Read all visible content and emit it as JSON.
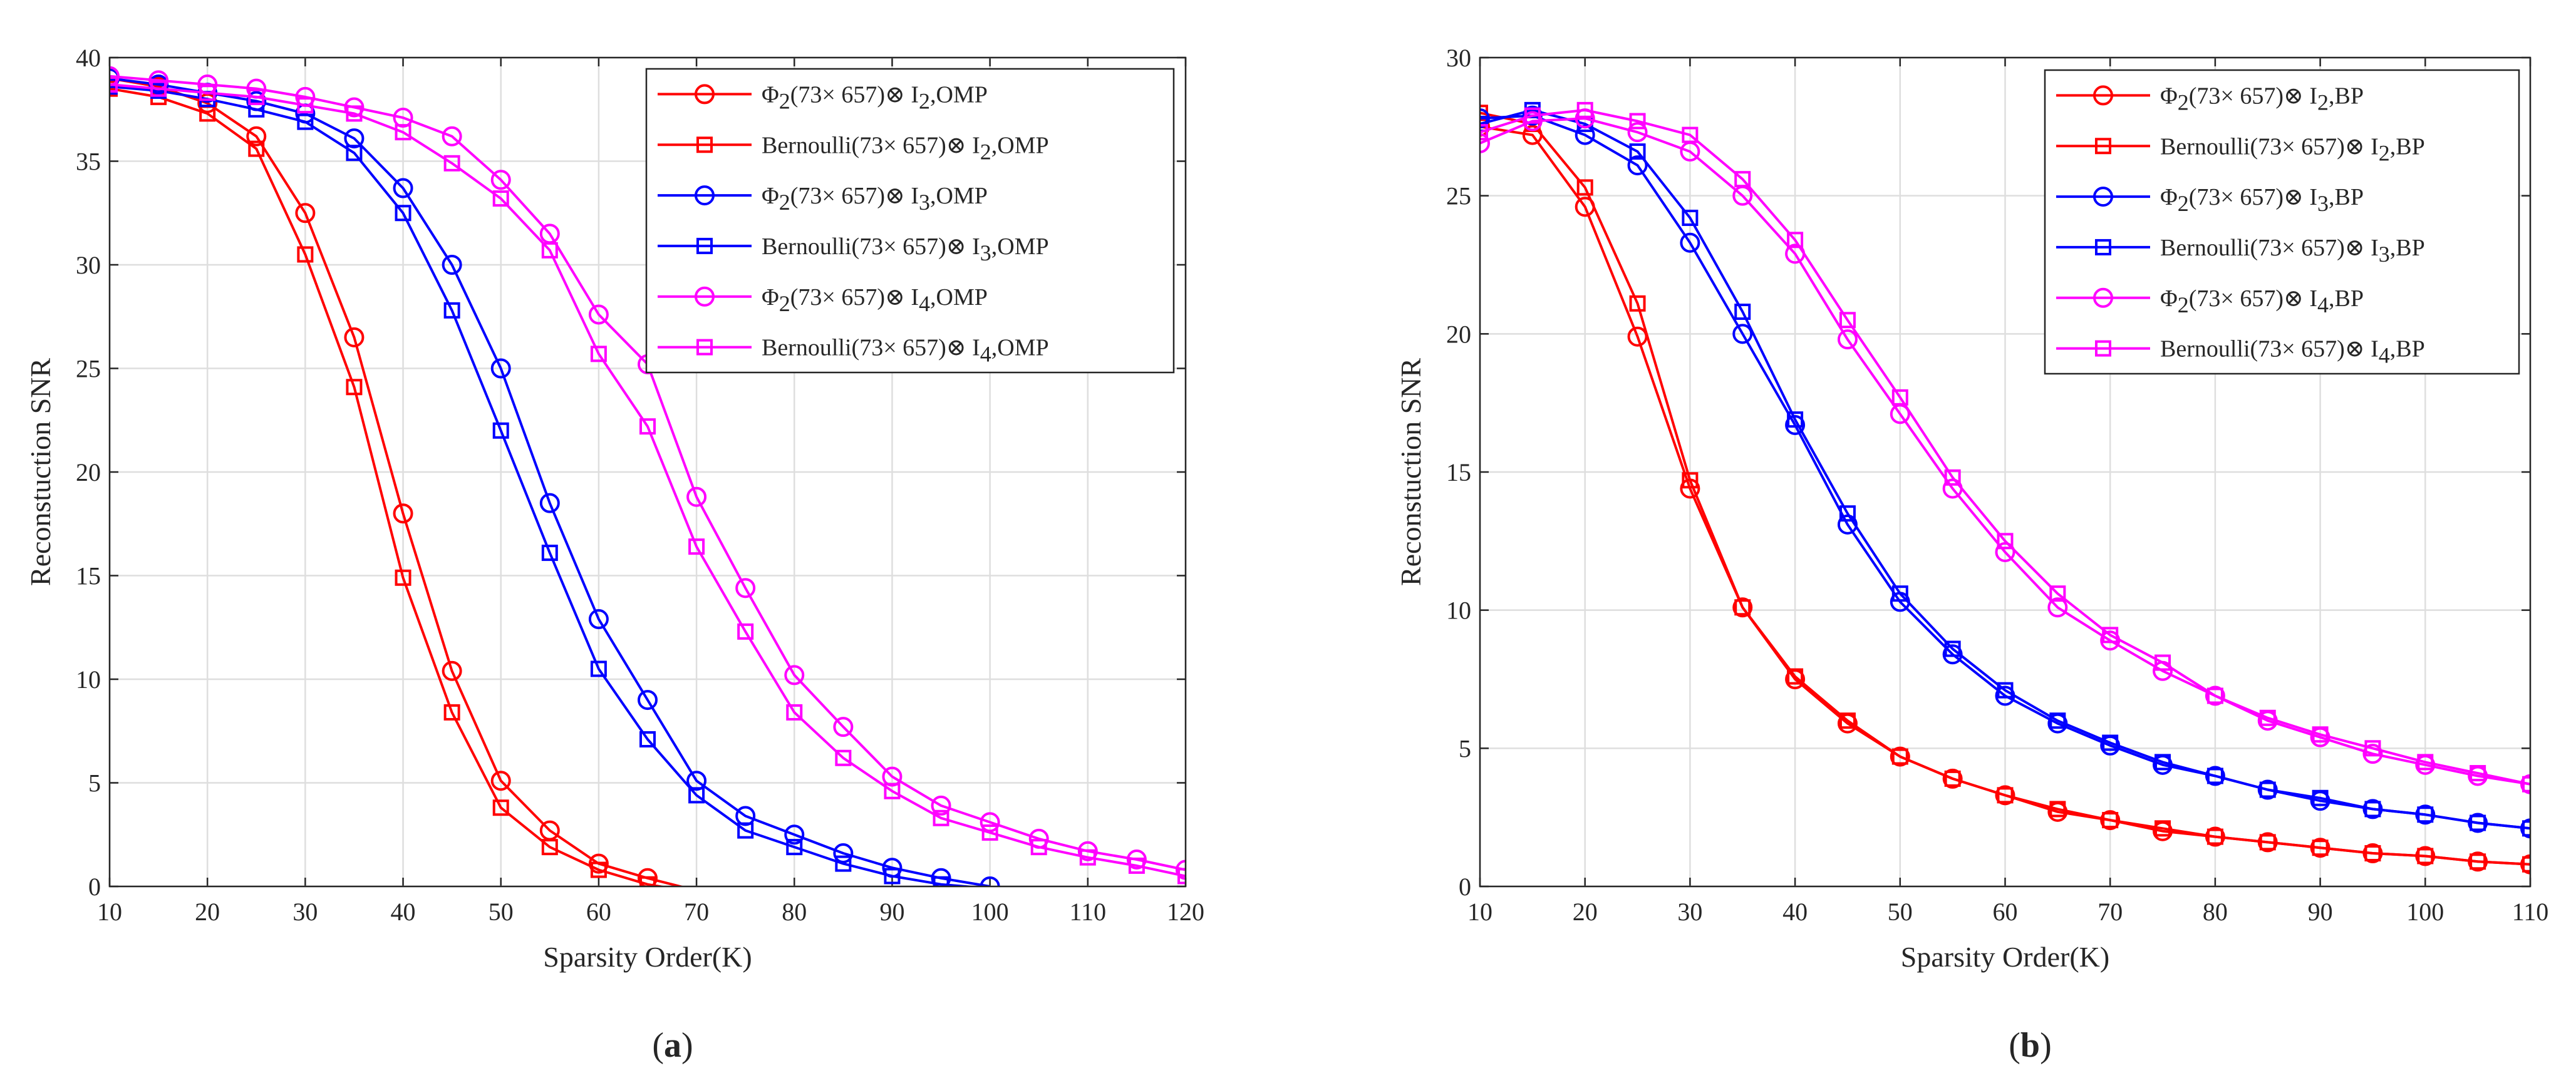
{
  "chart_data": [
    {
      "type": "line",
      "caption": "(a)",
      "xlabel": "Sparsity Order(K)",
      "ylabel": "Reconstuction SNR",
      "xlim": [
        10,
        120
      ],
      "ylim": [
        0,
        40
      ],
      "xticks": [
        10,
        20,
        30,
        40,
        50,
        60,
        70,
        80,
        90,
        100,
        110,
        120
      ],
      "yticks": [
        0,
        5,
        10,
        15,
        20,
        25,
        30,
        35,
        40
      ],
      "grid": true,
      "legend_position": "top-right",
      "series": [
        {
          "name": "Φ2(73× 657)⊗ I2,OMP",
          "legend": {
            "pre": "Φ",
            "pre_sub": "2",
            "mid": "(73× 657)⊗ I",
            "mid_sub": "2",
            "post": ",OMP"
          },
          "color": "#ff0000",
          "marker": "circle",
          "x": [
            10,
            15,
            20,
            25,
            30,
            35,
            40,
            45,
            50,
            55,
            60,
            65,
            70
          ],
          "y": [
            39.0,
            38.6,
            37.8,
            36.2,
            32.5,
            26.5,
            18.0,
            10.4,
            5.1,
            2.7,
            1.1,
            0.4,
            -0.2
          ]
        },
        {
          "name": "Bernoulli(73× 657)⊗ I2,OMP",
          "legend": {
            "pre": "Bernoulli",
            "pre_sub": "",
            "mid": "(73× 657)⊗ I",
            "mid_sub": "2",
            "post": ",OMP"
          },
          "color": "#ff0000",
          "marker": "square",
          "x": [
            10,
            15,
            20,
            25,
            30,
            35,
            40,
            45,
            50,
            55,
            60,
            65,
            70
          ],
          "y": [
            38.5,
            38.1,
            37.3,
            35.6,
            30.5,
            24.1,
            14.9,
            8.4,
            3.8,
            1.9,
            0.8,
            0.1,
            -0.3
          ]
        },
        {
          "name": "Φ2(73× 657)⊗ I3,OMP",
          "legend": {
            "pre": "Φ",
            "pre_sub": "2",
            "mid": "(73× 657)⊗ I",
            "mid_sub": "3",
            "post": ",OMP"
          },
          "color": "#0000ff",
          "marker": "circle",
          "x": [
            10,
            15,
            20,
            25,
            30,
            35,
            40,
            45,
            50,
            55,
            60,
            65,
            70,
            75,
            80,
            85,
            90,
            95,
            100
          ],
          "y": [
            39.0,
            38.7,
            38.3,
            37.9,
            37.3,
            36.1,
            33.7,
            30.0,
            25.0,
            18.5,
            12.9,
            9.0,
            5.1,
            3.4,
            2.5,
            1.6,
            0.9,
            0.4,
            0.0
          ]
        },
        {
          "name": "Bernoulli(73× 657)⊗ I3,OMP",
          "legend": {
            "pre": "Bernoulli",
            "pre_sub": "",
            "mid": "(73× 657)⊗ I",
            "mid_sub": "3",
            "post": ",OMP"
          },
          "color": "#0000ff",
          "marker": "square",
          "x": [
            10,
            15,
            20,
            25,
            30,
            35,
            40,
            45,
            50,
            55,
            60,
            65,
            70,
            75,
            80,
            85,
            90,
            95,
            100
          ],
          "y": [
            38.6,
            38.4,
            38.0,
            37.5,
            36.9,
            35.4,
            32.5,
            27.8,
            22.0,
            16.1,
            10.5,
            7.1,
            4.4,
            2.7,
            1.9,
            1.1,
            0.5,
            0.1,
            -0.1
          ]
        },
        {
          "name": "Φ2(73× 657)⊗ I4,OMP",
          "legend": {
            "pre": "Φ",
            "pre_sub": "2",
            "mid": "(73× 657)⊗ I",
            "mid_sub": "4",
            "post": ",OMP"
          },
          "color": "#ff00ff",
          "marker": "circle",
          "x": [
            10,
            15,
            20,
            25,
            30,
            35,
            40,
            45,
            50,
            55,
            60,
            65,
            70,
            75,
            80,
            85,
            90,
            95,
            100,
            105,
            110,
            115,
            120
          ],
          "y": [
            39.1,
            38.9,
            38.7,
            38.5,
            38.1,
            37.6,
            37.1,
            36.2,
            34.1,
            31.5,
            27.6,
            25.2,
            18.8,
            14.4,
            10.2,
            7.7,
            5.3,
            3.9,
            3.1,
            2.3,
            1.7,
            1.3,
            0.8
          ]
        },
        {
          "name": "Bernoulli(73× 657)⊗ I4,OMP",
          "legend": {
            "pre": "Bernoulli",
            "pre_sub": "",
            "mid": "(73× 657)⊗ I",
            "mid_sub": "4",
            "post": ",OMP"
          },
          "color": "#ff00ff",
          "marker": "square",
          "x": [
            10,
            15,
            20,
            25,
            30,
            35,
            40,
            45,
            50,
            55,
            60,
            65,
            70,
            75,
            80,
            85,
            90,
            95,
            100,
            105,
            110,
            115,
            120
          ],
          "y": [
            38.7,
            38.5,
            38.3,
            38.1,
            37.7,
            37.3,
            36.4,
            34.9,
            33.2,
            30.7,
            25.7,
            22.2,
            16.4,
            12.3,
            8.4,
            6.2,
            4.6,
            3.3,
            2.6,
            1.9,
            1.4,
            1.0,
            0.5
          ]
        }
      ]
    },
    {
      "type": "line",
      "caption": "(b)",
      "xlabel": "Sparsity Order(K)",
      "ylabel": "Reconstuction SNR",
      "xlim": [
        10,
        110
      ],
      "ylim": [
        0,
        30
      ],
      "xticks": [
        10,
        20,
        30,
        40,
        50,
        60,
        70,
        80,
        90,
        100,
        110
      ],
      "yticks": [
        0,
        5,
        10,
        15,
        20,
        25,
        30
      ],
      "grid": true,
      "legend_position": "top-right",
      "series": [
        {
          "name": "Φ2(73× 657)⊗ I2,BP",
          "legend": {
            "pre": "Φ",
            "pre_sub": "2",
            "mid": "(73× 657)⊗ I",
            "mid_sub": "2",
            "post": ",BP"
          },
          "color": "#ff0000",
          "marker": "circle",
          "x": [
            10,
            15,
            20,
            25,
            30,
            35,
            40,
            45,
            50,
            55,
            60,
            65,
            70,
            75,
            80,
            85,
            90,
            95,
            100,
            105,
            110
          ],
          "y": [
            27.5,
            27.2,
            24.6,
            19.9,
            14.4,
            10.1,
            7.5,
            5.9,
            4.7,
            3.9,
            3.3,
            2.7,
            2.4,
            2.0,
            1.8,
            1.6,
            1.4,
            1.2,
            1.1,
            0.9,
            0.8
          ]
        },
        {
          "name": "Bernoulli(73× 657)⊗ I2,BP",
          "legend": {
            "pre": "Bernoulli",
            "pre_sub": "",
            "mid": "(73× 657)⊗ I",
            "mid_sub": "2",
            "post": ",BP"
          },
          "color": "#ff0000",
          "marker": "square",
          "x": [
            10,
            15,
            20,
            25,
            30,
            35,
            40,
            45,
            50,
            55,
            60,
            65,
            70,
            75,
            80,
            85,
            90,
            95,
            100,
            105,
            110
          ],
          "y": [
            28.0,
            27.6,
            25.3,
            21.1,
            14.7,
            10.1,
            7.6,
            6.0,
            4.7,
            3.9,
            3.3,
            2.8,
            2.4,
            2.1,
            1.8,
            1.6,
            1.4,
            1.2,
            1.1,
            0.9,
            0.8
          ]
        },
        {
          "name": "Φ2(73× 657)⊗ I3,BP",
          "legend": {
            "pre": "Φ",
            "pre_sub": "2",
            "mid": "(73× 657)⊗ I",
            "mid_sub": "3",
            "post": ",BP"
          },
          "color": "#0000ff",
          "marker": "circle",
          "x": [
            10,
            15,
            20,
            25,
            30,
            35,
            40,
            45,
            50,
            55,
            60,
            65,
            70,
            75,
            80,
            85,
            90,
            95,
            100,
            105,
            110
          ],
          "y": [
            27.8,
            27.9,
            27.2,
            26.1,
            23.3,
            20.0,
            16.7,
            13.1,
            10.3,
            8.4,
            6.9,
            5.9,
            5.1,
            4.4,
            4.0,
            3.5,
            3.1,
            2.8,
            2.6,
            2.3,
            2.1
          ]
        },
        {
          "name": "Bernoulli(73× 657)⊗ I3,BP",
          "legend": {
            "pre": "Bernoulli",
            "pre_sub": "",
            "mid": "(73× 657)⊗ I",
            "mid_sub": "3",
            "post": ",BP"
          },
          "color": "#0000ff",
          "marker": "square",
          "x": [
            10,
            15,
            20,
            25,
            30,
            35,
            40,
            45,
            50,
            55,
            60,
            65,
            70,
            75,
            80,
            85,
            90,
            95,
            100,
            105,
            110
          ],
          "y": [
            27.6,
            28.1,
            27.6,
            26.6,
            24.2,
            20.8,
            16.9,
            13.5,
            10.6,
            8.6,
            7.1,
            6.0,
            5.2,
            4.5,
            4.0,
            3.5,
            3.2,
            2.8,
            2.6,
            2.3,
            2.1
          ]
        },
        {
          "name": "Φ2(73× 657)⊗ I4,BP",
          "legend": {
            "pre": "Φ",
            "pre_sub": "2",
            "mid": "(73× 657)⊗ I",
            "mid_sub": "4",
            "post": ",BP"
          },
          "color": "#ff00ff",
          "marker": "circle",
          "x": [
            10,
            15,
            20,
            25,
            30,
            35,
            40,
            45,
            50,
            55,
            60,
            65,
            70,
            75,
            80,
            85,
            90,
            95,
            100,
            105,
            110
          ],
          "y": [
            26.9,
            27.7,
            27.8,
            27.3,
            26.6,
            25.0,
            22.9,
            19.8,
            17.1,
            14.4,
            12.1,
            10.1,
            8.9,
            7.8,
            6.9,
            6.0,
            5.4,
            4.8,
            4.4,
            4.0,
            3.7
          ]
        },
        {
          "name": "Bernoulli(73× 657)⊗ I4,BP",
          "legend": {
            "pre": "Bernoulli",
            "pre_sub": "",
            "mid": "(73× 657)⊗ I",
            "mid_sub": "4",
            "post": ",BP"
          },
          "color": "#ff00ff",
          "marker": "square",
          "x": [
            10,
            15,
            20,
            25,
            30,
            35,
            40,
            45,
            50,
            55,
            60,
            65,
            70,
            75,
            80,
            85,
            90,
            95,
            100,
            105,
            110
          ],
          "y": [
            27.3,
            27.9,
            28.1,
            27.7,
            27.2,
            25.6,
            23.4,
            20.5,
            17.7,
            14.8,
            12.5,
            10.6,
            9.1,
            8.1,
            6.9,
            6.1,
            5.5,
            5.0,
            4.5,
            4.1,
            3.7
          ]
        }
      ]
    }
  ]
}
